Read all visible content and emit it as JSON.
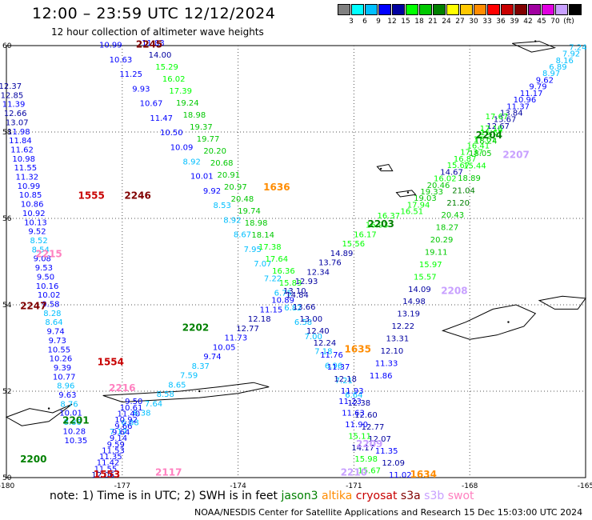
{
  "title": "12:00 – 23:59 UTC 12/12/2024",
  "subtitle": "12 hour collection of altimeter wave heights",
  "legend": {
    "colors": [
      "#808080",
      "#00ffff",
      "#00bfff",
      "#0000ff",
      "#0000a0",
      "#00ff00",
      "#00c800",
      "#008000",
      "#ffff00",
      "#ffc800",
      "#ff8c00",
      "#ff0000",
      "#c80000",
      "#800000",
      "#a000a0",
      "#e000e0",
      "#c8a0ff",
      "#000000"
    ],
    "levels": [
      "3",
      "6",
      "9",
      "12",
      "15",
      "18",
      "21",
      "24",
      "27",
      "30",
      "33",
      "36",
      "39",
      "42",
      "45",
      "70",
      "(ft)"
    ]
  },
  "axes": {
    "lat_labels": [
      "60",
      "58",
      "56",
      "54",
      "52",
      "50"
    ],
    "lon_labels": [
      "-180",
      "-177",
      "-174",
      "-171",
      "-168",
      "-165"
    ]
  },
  "note": {
    "prefix": "note:  1) Time is in UTC; 2) SWH is in feet",
    "sats": [
      {
        "name": "jason3",
        "color": "#008000"
      },
      {
        "name": "altika",
        "color": "#ff8c00"
      },
      {
        "name": "cryosat",
        "color": "#c80000"
      },
      {
        "name": "s3a",
        "color": "#800000"
      },
      {
        "name": "s3b",
        "color": "#c8a0ff"
      },
      {
        "name": "swot",
        "color": "#ff80c0"
      }
    ]
  },
  "footer": "NOAA/NESDIS Center for Satellite Applications and Research    15 Dec 15:03:00 UTC 2024",
  "pass_labels": [
    {
      "text": "2245",
      "lat": 59.95,
      "lon": -176.3,
      "color": "#800000"
    },
    {
      "text": "2246",
      "lat": 56.45,
      "lon": -176.6,
      "color": "#800000"
    },
    {
      "text": "1555",
      "lat": 56.45,
      "lon": -177.8,
      "color": "#c80000"
    },
    {
      "text": "1636",
      "lat": 56.65,
      "lon": -173.0,
      "color": "#ff8c00"
    },
    {
      "text": "2204",
      "lat": 57.85,
      "lon": -167.5,
      "color": "#008000"
    },
    {
      "text": "2207",
      "lat": 57.4,
      "lon": -166.8,
      "color": "#c8a0ff"
    },
    {
      "text": "2203",
      "lat": 55.8,
      "lon": -170.3,
      "color": "#008000"
    },
    {
      "text": "2208",
      "lat": 54.25,
      "lon": -168.4,
      "color": "#c8a0ff"
    },
    {
      "text": "2202",
      "lat": 53.4,
      "lon": -175.1,
      "color": "#008000"
    },
    {
      "text": "1635",
      "lat": 52.9,
      "lon": -170.9,
      "color": "#ff8c00"
    },
    {
      "text": "2215",
      "lat": 55.1,
      "lon": -178.9,
      "color": "#ff80c0"
    },
    {
      "text": "2247",
      "lat": 53.9,
      "lon": -179.3,
      "color": "#800000"
    },
    {
      "text": "1554",
      "lat": 52.6,
      "lon": -177.3,
      "color": "#c80000"
    },
    {
      "text": "2216",
      "lat": 52.0,
      "lon": -177.0,
      "color": "#ff80c0"
    },
    {
      "text": "2201",
      "lat": 51.25,
      "lon": -178.2,
      "color": "#008000"
    },
    {
      "text": "2200",
      "lat": 50.35,
      "lon": -179.3,
      "color": "#008000"
    },
    {
      "text": "1553",
      "lat": 50.0,
      "lon": -177.4,
      "color": "#c80000"
    },
    {
      "text": "2117",
      "lat": 50.05,
      "lon": -175.8,
      "color": "#ff80c0"
    },
    {
      "text": "2209",
      "lat": 50.7,
      "lon": -170.6,
      "color": "#c8a0ff"
    },
    {
      "text": "2210",
      "lat": 50.05,
      "lon": -171.0,
      "color": "#c8a0ff"
    },
    {
      "text": "1634",
      "lat": 50.0,
      "lon": -169.2,
      "color": "#ff8c00"
    }
  ],
  "tracks": [
    {
      "name": "track-2245",
      "start": [
        59.95,
        -177.3
      ],
      "end": [
        51.85,
        -171.0
      ],
      "values": [
        "10.99",
        "10.63",
        "11.25",
        "9.93",
        "10.67",
        "11.47",
        "10.50",
        "10.09",
        "8.92",
        "10.01",
        "9.92",
        "8.53",
        "8.92",
        "8.67",
        "7.95",
        "7.07",
        "7.22",
        "6.75",
        "6.82",
        "6.58",
        "7.00",
        "7.18",
        "6.96",
        "7.21",
        "6.64"
      ]
    },
    {
      "name": "track-2246",
      "start": [
        60.0,
        -176.2
      ],
      "end": [
        50.0,
        -169.8
      ],
      "values": [
        "11.83",
        "14.00",
        "15.29",
        "16.02",
        "17.39",
        "19.24",
        "18.98",
        "19.37",
        "19.77",
        "20.20",
        "20.68",
        "20.91",
        "20.97",
        "20.48",
        "19.74",
        "18.98",
        "18.14",
        "17.38",
        "17.64",
        "16.36",
        "15.83",
        "14.84",
        "13.66",
        "13.00",
        "12.40",
        "12.24",
        "11.76",
        "11.37",
        "12.18",
        "11.93",
        "12.38",
        "12.60",
        "12.77",
        "12.07",
        "11.35",
        "12.09",
        "11.02"
      ]
    },
    {
      "name": "track-2204",
      "start": [
        59.9,
        -165.2
      ],
      "end": [
        56.1,
        -169.5
      ],
      "values": [
        "7.24",
        "7.92",
        "8.16",
        "6.89",
        "8.97",
        "9.62",
        "9.79",
        "11.17",
        "10.96",
        "11.37",
        "13.84",
        "13.67",
        "12.67",
        "15.67",
        "17.61",
        "16.41",
        "17.37",
        "16.87",
        "15.67",
        "14.67",
        "16.02",
        "20.46",
        "19.33",
        "19.03",
        "17.94",
        "16.51"
      ]
    },
    {
      "name": "track-2207",
      "start": [
        58.3,
        -167.3
      ],
      "end": [
        52.3,
        -170.3
      ],
      "values": [
        "17.67",
        "17.18",
        "18.24",
        "18.05",
        "15.44",
        "18.89",
        "21.04",
        "21.20",
        "20.43",
        "18.27",
        "20.29",
        "19.11",
        "15.97",
        "15.57",
        "14.09",
        "14.98",
        "13.19",
        "12.22",
        "13.31",
        "12.10",
        "11.33",
        "11.86"
      ]
    },
    {
      "name": "track-2203",
      "start": [
        56.0,
        -170.1
      ],
      "end": [
        51.0,
        -177.1
      ],
      "values": [
        "16.37",
        "16.93",
        "16.17",
        "15.56",
        "14.89",
        "13.76",
        "12.34",
        "12.93",
        "13.10",
        "10.89",
        "11.15",
        "12.18",
        "12.77",
        "11.73",
        "10.05",
        "9.74",
        "8.37",
        "7.59",
        "8.65",
        "8.58",
        "7.64",
        "6.38",
        "6.88",
        "7.17"
      ]
    },
    {
      "name": "track-2202",
      "start": [
        59.0,
        -179.9
      ],
      "end": [
        50.8,
        -178.2
      ],
      "values": [
        "12.37",
        "12.85",
        "11.39",
        "12.66",
        "13.07",
        "11.98",
        "11.84",
        "11.62",
        "10.98",
        "11.55",
        "11.32",
        "10.99",
        "10.85",
        "10.86",
        "10.92",
        "10.13",
        "9.52",
        "8.52",
        "8.54",
        "9.08",
        "9.53",
        "9.50",
        "10.16",
        "10.02",
        "9.58",
        "8.28",
        "8.64",
        "9.74",
        "9.73",
        "10.55",
        "10.26",
        "9.39",
        "10.77",
        "8.96",
        "9.63",
        "8.76",
        "10.01",
        "8.86",
        "10.28",
        "10.35"
      ]
    },
    {
      "name": "track-2201",
      "start": [
        51.7,
        -176.7
      ],
      "end": [
        50.0,
        -177.5
      ],
      "values": [
        "9.50",
        "10.61",
        "11.40",
        "10.92",
        "9.66",
        "9.64",
        "9.14",
        "9.59",
        "11.53",
        "11.35",
        "11.42",
        "11.55",
        "12.06"
      ]
    },
    {
      "name": "track-2209",
      "start": [
        51.7,
        -171.1
      ],
      "end": [
        50.1,
        -170.6
      ],
      "values": [
        "11.23",
        "11.63",
        "11.90",
        "15.11",
        "14.17",
        "15.98",
        "15.67"
      ]
    }
  ],
  "islands": [
    {
      "name": "pribilof-st-george",
      "lat": 56.6,
      "lon": -169.6
    },
    {
      "name": "pribilof-st-paul",
      "lat": 57.15,
      "lon": -170.3
    },
    {
      "name": "nunivak",
      "lat": 60.1,
      "lon": -166.3
    },
    {
      "name": "fox-islands",
      "lat": 53.6,
      "lon": -167.0
    },
    {
      "name": "andreanof-islands",
      "lat": 52.0,
      "lon": -175.0
    },
    {
      "name": "rat-islands",
      "lat": 51.6,
      "lon": -178.9
    }
  ]
}
